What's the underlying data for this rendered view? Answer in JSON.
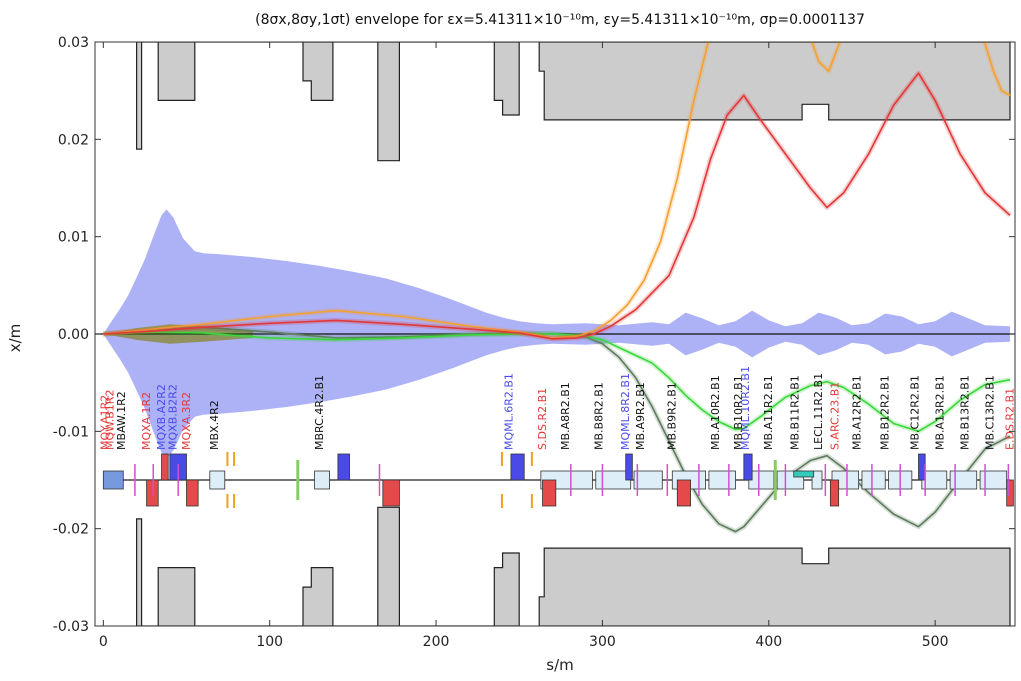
{
  "chart_data": {
    "type": "line",
    "title": "(8σx,8σy,1σt) envelope for εx=5.41311×10⁻¹⁰m, εy=5.41311×10⁻¹⁰m, σp=0.0001137",
    "xlabel": "s/m",
    "ylabel": "x/m",
    "xlim": [
      -5,
      548
    ],
    "ylim": [
      -0.03,
      0.03
    ],
    "x_ticks": [
      0,
      100,
      200,
      300,
      400,
      500
    ],
    "y_ticks": [
      -0.03,
      -0.02,
      -0.01,
      0.0,
      0.01,
      0.02,
      0.03
    ],
    "y_tick_labels": [
      "-0.03",
      "-0.02",
      "-0.01",
      "0.00",
      "0.01",
      "0.02",
      "0.03"
    ],
    "colors": {
      "envelope": "#a9adf5",
      "aperture": "#cccccc",
      "orange_orbit": "#f5a033",
      "red_orbit": "#e23838",
      "green_orbit": "#3ad83a",
      "darkgreen_orbit": "#5d7d5d",
      "dipole": "#ddeef8",
      "quad_red": "#e44a4a",
      "quad_blue": "#4a4ae8",
      "marker_magenta": "#d050d0",
      "corrector_orange": "#f0a020"
    },
    "series": [
      {
        "key": "envelope",
        "x": [
          0,
          5,
          10,
          15,
          20,
          25,
          30,
          35,
          38,
          42,
          48,
          55,
          60,
          70,
          90,
          110,
          130,
          150,
          170,
          190,
          210,
          230,
          240,
          250,
          255,
          260,
          270,
          290,
          310,
          330,
          340,
          350,
          360,
          370,
          380,
          390,
          400,
          410,
          420,
          430,
          440,
          450,
          460,
          470,
          480,
          490,
          500,
          510,
          520,
          530,
          545
        ],
        "y": [
          0.0,
          0.0013,
          0.0026,
          0.004,
          0.0058,
          0.0077,
          0.01,
          0.0122,
          0.0128,
          0.012,
          0.0098,
          0.0085,
          0.0083,
          0.0082,
          0.0079,
          0.0075,
          0.007,
          0.0064,
          0.0057,
          0.0047,
          0.0035,
          0.0022,
          0.0017,
          0.0013,
          0.0012,
          0.0011,
          0.001,
          0.0011,
          0.0009,
          0.0012,
          0.001,
          0.0022,
          0.0016,
          0.0009,
          0.0013,
          0.0024,
          0.0014,
          0.0008,
          0.0011,
          0.0022,
          0.0017,
          0.0009,
          0.0011,
          0.0021,
          0.0018,
          0.001,
          0.0013,
          0.0023,
          0.0016,
          0.0009,
          0.0008
        ]
      },
      {
        "key": "orange_orbit",
        "x": [
          0,
          30,
          60,
          100,
          140,
          180,
          220,
          250,
          270,
          285,
          295,
          305,
          315,
          325,
          335,
          345,
          355,
          365
        ],
        "y": [
          0.0,
          0.0005,
          0.001,
          0.0018,
          0.0024,
          0.0018,
          0.0008,
          0.0002,
          -0.0004,
          -0.0002,
          0.0003,
          0.0014,
          0.003,
          0.0055,
          0.0095,
          0.016,
          0.024,
          0.031
        ]
      },
      {
        "key": "orange_orbit_2",
        "x": [
          528,
          535,
          540,
          545
        ],
        "y": [
          0.031,
          0.027,
          0.025,
          0.0245
        ]
      },
      {
        "key": "orange_orbit_3",
        "x": [
          424,
          430,
          436,
          445
        ],
        "y": [
          0.031,
          0.028,
          0.027,
          0.031
        ]
      },
      {
        "key": "red_orbit",
        "x": [
          0,
          30,
          60,
          100,
          140,
          180,
          220,
          250,
          270,
          285,
          295,
          305,
          320,
          340,
          355,
          365,
          375,
          385,
          395,
          410,
          425,
          435,
          445,
          460,
          475,
          490,
          500,
          515,
          530,
          545
        ],
        "y": [
          0.0,
          0.0003,
          0.0007,
          0.0011,
          0.0014,
          0.001,
          0.0005,
          0.0001,
          -0.0005,
          -0.0004,
          0.0,
          0.0008,
          0.0025,
          0.006,
          0.012,
          0.018,
          0.0225,
          0.0245,
          0.022,
          0.0185,
          0.015,
          0.013,
          0.0145,
          0.0185,
          0.0235,
          0.0268,
          0.024,
          0.0185,
          0.0145,
          0.0122
        ]
      },
      {
        "key": "green_orbit",
        "x": [
          0,
          30,
          60,
          100,
          140,
          180,
          220,
          250,
          270,
          290,
          300,
          310,
          320,
          330,
          340,
          350,
          360,
          370,
          380,
          385,
          395,
          410,
          425,
          435,
          445,
          460,
          475,
          490,
          500,
          515,
          530,
          545
        ],
        "y": [
          0.0,
          0.0002,
          0.0001,
          -0.0004,
          -0.0006,
          -0.0004,
          -0.0001,
          0.0,
          0.0,
          -0.0002,
          -0.0006,
          -0.0014,
          -0.0022,
          -0.003,
          -0.0045,
          -0.0063,
          -0.0078,
          -0.009,
          -0.0098,
          -0.0097,
          -0.0085,
          -0.0065,
          -0.0053,
          -0.0049,
          -0.0055,
          -0.0072,
          -0.0092,
          -0.01,
          -0.009,
          -0.0068,
          -0.0052,
          -0.0047
        ]
      },
      {
        "key": "darkgreen_orbit",
        "x": [
          0,
          30,
          60,
          100,
          140,
          180,
          220,
          250,
          270,
          290,
          300,
          310,
          320,
          330,
          340,
          350,
          360,
          370,
          380,
          385,
          395,
          410,
          425,
          435,
          445,
          460,
          475,
          490,
          500,
          515,
          530,
          545
        ],
        "y": [
          0.0,
          0.0005,
          0.0007,
          0.0002,
          -0.0004,
          -0.0003,
          0.0,
          0.0001,
          0.0,
          -0.0003,
          -0.001,
          -0.0024,
          -0.0045,
          -0.0075,
          -0.011,
          -0.0145,
          -0.0175,
          -0.0195,
          -0.0203,
          -0.0198,
          -0.0178,
          -0.0148,
          -0.013,
          -0.0125,
          -0.0138,
          -0.0163,
          -0.0185,
          -0.0198,
          -0.0183,
          -0.015,
          -0.0118,
          -0.0105
        ]
      },
      {
        "key": "aperture_top_left",
        "x": [
          20,
          20,
          23,
          23,
          33,
          33,
          55,
          55,
          120,
          120,
          125,
          125,
          138,
          138,
          165,
          165,
          178,
          178,
          235,
          235,
          240,
          240,
          250,
          250
        ],
        "y": [
          0.03,
          0.019,
          0.019,
          0.03,
          0.03,
          0.024,
          0.024,
          0.03,
          0.03,
          0.026,
          0.026,
          0.024,
          0.024,
          0.03,
          0.03,
          0.0178,
          0.0178,
          0.03,
          0.03,
          0.024,
          0.024,
          0.0225,
          0.0225,
          0.03
        ]
      },
      {
        "key": "aperture_top_right",
        "x": [
          262,
          262,
          265,
          265,
          420,
          420,
          436,
          436,
          545,
          545
        ],
        "y": [
          0.03,
          0.027,
          0.027,
          0.022,
          0.022,
          0.0236,
          0.0236,
          0.022,
          0.022,
          0.03
        ]
      },
      {
        "key": "aperture_bottom_left",
        "x": [
          20,
          20,
          23,
          23,
          33,
          33,
          55,
          55,
          120,
          120,
          125,
          125,
          138,
          138,
          165,
          165,
          178,
          178,
          235,
          235,
          240,
          240,
          250,
          250
        ],
        "y": [
          -0.03,
          -0.019,
          -0.019,
          -0.03,
          -0.03,
          -0.024,
          -0.024,
          -0.03,
          -0.03,
          -0.026,
          -0.026,
          -0.024,
          -0.024,
          -0.03,
          -0.03,
          -0.0178,
          -0.0178,
          -0.03,
          -0.03,
          -0.024,
          -0.024,
          -0.0225,
          -0.0225,
          -0.03
        ]
      },
      {
        "key": "aperture_bottom_right",
        "x": [
          262,
          262,
          265,
          265,
          420,
          420,
          436,
          436,
          545,
          545
        ],
        "y": [
          -0.03,
          -0.027,
          -0.027,
          -0.022,
          -0.022,
          -0.0236,
          -0.0236,
          -0.022,
          -0.022,
          -0.03
        ]
      }
    ],
    "beamline": {
      "center_y": -0.015,
      "dipoles": [
        {
          "s0": 263,
          "s1": 294
        },
        {
          "s0": 296,
          "s1": 317
        },
        {
          "s0": 319,
          "s1": 336
        },
        {
          "s0": 342,
          "s1": 362
        },
        {
          "s0": 364,
          "s1": 380
        },
        {
          "s0": 388,
          "s1": 403
        },
        {
          "s0": 405,
          "s1": 421
        },
        {
          "s0": 426,
          "s1": 432
        },
        {
          "s0": 438,
          "s1": 454
        },
        {
          "s0": 456,
          "s1": 470
        },
        {
          "s0": 472,
          "s1": 486
        },
        {
          "s0": 492,
          "s1": 507
        },
        {
          "s0": 509,
          "s1": 525
        },
        {
          "s0": 527,
          "s1": 543
        }
      ],
      "red_quads": [
        {
          "s": 26,
          "w": 7,
          "side": "down"
        },
        {
          "s": 35,
          "w": 4,
          "side": "up"
        },
        {
          "s": 50,
          "w": 7,
          "side": "down"
        },
        {
          "s": 168,
          "w": 10,
          "side": "down"
        },
        {
          "s": 264,
          "w": 8,
          "side": "down"
        },
        {
          "s": 345,
          "w": 8,
          "side": "down"
        },
        {
          "s": 437,
          "w": 5,
          "side": "down"
        },
        {
          "s": 543,
          "w": 4,
          "side": "down"
        }
      ],
      "blue_quads": [
        {
          "s": 40,
          "w": 10
        },
        {
          "s": 141,
          "w": 7
        },
        {
          "s": 245,
          "w": 8
        },
        {
          "s": 314,
          "w": 4
        },
        {
          "s": 385,
          "w": 5
        },
        {
          "s": 490,
          "w": 4
        }
      ],
      "magenta_markers": [
        19,
        30,
        45,
        166,
        281,
        300,
        321,
        339,
        358,
        376,
        394,
        410,
        434,
        447,
        462,
        479,
        494,
        512,
        530,
        544
      ],
      "orange_correctors": [
        74,
        78,
        239,
        257
      ],
      "green_markers": [
        116,
        403
      ],
      "small_boxes": [
        {
          "s": 0,
          "w": 12,
          "color": "#7799dd"
        },
        {
          "s": 64,
          "w": 9,
          "color": "#ddeef8"
        },
        {
          "s": 127,
          "w": 9,
          "color": "#ddeef8"
        },
        {
          "s": 415,
          "w": 12,
          "color": "#33ccbb"
        }
      ]
    },
    "element_labels": [
      {
        "text": "MQY.A1R2",
        "s": 3,
        "color": "#e23838"
      },
      {
        "text": "MQW.B1R2",
        "s": 6,
        "color": "#e23838"
      },
      {
        "text": "MBAW.1R2",
        "s": 13,
        "color": "#111111"
      },
      {
        "text": "MQXA.1R2",
        "s": 28,
        "color": "#e23838"
      },
      {
        "text": "MQXB.A2R2",
        "s": 37,
        "color": "#4a4ae8"
      },
      {
        "text": "MQXB.B2R2",
        "s": 44,
        "color": "#4a4ae8"
      },
      {
        "text": "MQXA.3R2",
        "s": 52,
        "color": "#e23838"
      },
      {
        "text": "MBX.4R2",
        "s": 69,
        "color": "#111111"
      },
      {
        "text": "MBRC.4R2.B1",
        "s": 132,
        "color": "#111111"
      },
      {
        "text": "MQML.6R2.B1",
        "s": 246,
        "color": "#4a4ae8"
      },
      {
        "text": "S.DS.R2.B1",
        "s": 266,
        "color": "#e23838"
      },
      {
        "text": "MB.A8R2.B1",
        "s": 280,
        "color": "#111111"
      },
      {
        "text": "MB.B8R2.B1",
        "s": 300,
        "color": "#111111"
      },
      {
        "text": "MQML.8R2.B1",
        "s": 316,
        "color": "#4a4ae8"
      },
      {
        "text": "MB.A9R2.B1",
        "s": 325,
        "color": "#111111"
      },
      {
        "text": "MB.B9R2.B1",
        "s": 344,
        "color": "#111111"
      },
      {
        "text": "MB.A10R2.B1",
        "s": 370,
        "color": "#111111"
      },
      {
        "text": "MB.B10R2.B1",
        "s": 384,
        "color": "#111111"
      },
      {
        "text": "MQML.10R2.B1",
        "s": 388,
        "color": "#4a4ae8"
      },
      {
        "text": "MB.A11R2.B1",
        "s": 402,
        "color": "#111111"
      },
      {
        "text": "MB.B11R2.B1",
        "s": 418,
        "color": "#111111"
      },
      {
        "text": "LECL.11R2.B1",
        "s": 432,
        "color": "#111111"
      },
      {
        "text": "S.ARC.23.B1",
        "s": 442,
        "color": "#e23838"
      },
      {
        "text": "MB.A12R2.B1",
        "s": 455,
        "color": "#111111"
      },
      {
        "text": "MB.B12R2.B1",
        "s": 472,
        "color": "#111111"
      },
      {
        "text": "MB.C12R2.B1",
        "s": 490,
        "color": "#111111"
      },
      {
        "text": "MB.A13R2.B1",
        "s": 505,
        "color": "#111111"
      },
      {
        "text": "MB.B13R2.B1",
        "s": 520,
        "color": "#111111"
      },
      {
        "text": "MB.C13R2.B1",
        "s": 535,
        "color": "#111111"
      },
      {
        "text": "E.DS.R2.B1",
        "s": 547,
        "color": "#e23838"
      }
    ]
  }
}
